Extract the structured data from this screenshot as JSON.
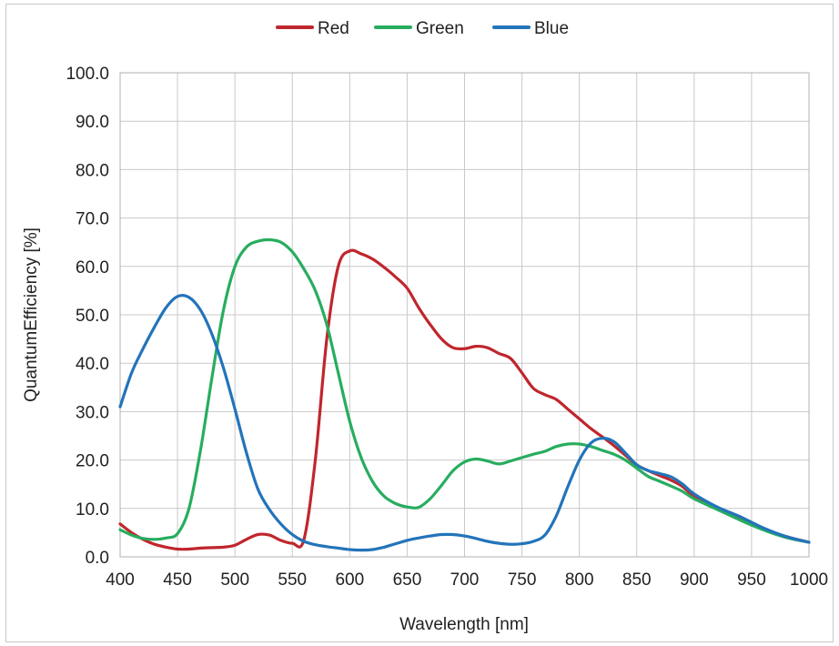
{
  "chart_data": {
    "type": "line",
    "xlabel": "Wavelength [nm]",
    "ylabel": "QuantumEfficiency [%]",
    "xlim": [
      400,
      1000
    ],
    "ylim": [
      0,
      100
    ],
    "x_ticks": [
      "400",
      "450",
      "500",
      "550",
      "600",
      "650",
      "700",
      "750",
      "800",
      "850",
      "900",
      "950",
      "1000"
    ],
    "y_ticks": [
      "0.0",
      "10.0",
      "20.0",
      "30.0",
      "40.0",
      "50.0",
      "60.0",
      "70.0",
      "80.0",
      "90.0",
      "100.0"
    ],
    "grid": true,
    "legend_position": "top",
    "series": [
      {
        "name": "Red",
        "color": "#c0262d",
        "points": [
          [
            400,
            6.8
          ],
          [
            410,
            5.0
          ],
          [
            420,
            3.6
          ],
          [
            430,
            2.6
          ],
          [
            440,
            2.0
          ],
          [
            450,
            1.6
          ],
          [
            460,
            1.6
          ],
          [
            470,
            1.8
          ],
          [
            480,
            1.9
          ],
          [
            490,
            2.0
          ],
          [
            500,
            2.4
          ],
          [
            510,
            3.6
          ],
          [
            520,
            4.6
          ],
          [
            530,
            4.5
          ],
          [
            540,
            3.4
          ],
          [
            550,
            2.8
          ],
          [
            560,
            3.5
          ],
          [
            570,
            20
          ],
          [
            580,
            45
          ],
          [
            590,
            60
          ],
          [
            600,
            63.2
          ],
          [
            610,
            62.6
          ],
          [
            620,
            61.5
          ],
          [
            630,
            59.8
          ],
          [
            640,
            57.8
          ],
          [
            650,
            55.5
          ],
          [
            660,
            51.5
          ],
          [
            670,
            48.0
          ],
          [
            680,
            45.0
          ],
          [
            690,
            43.2
          ],
          [
            700,
            43.0
          ],
          [
            710,
            43.5
          ],
          [
            720,
            43.2
          ],
          [
            730,
            42.0
          ],
          [
            740,
            41.0
          ],
          [
            750,
            38.0
          ],
          [
            760,
            34.8
          ],
          [
            770,
            33.5
          ],
          [
            780,
            32.5
          ],
          [
            790,
            30.5
          ],
          [
            800,
            28.5
          ],
          [
            810,
            26.5
          ],
          [
            820,
            24.8
          ],
          [
            830,
            23.0
          ],
          [
            840,
            21.0
          ],
          [
            850,
            19.0
          ],
          [
            860,
            17.8
          ],
          [
            870,
            16.8
          ],
          [
            880,
            15.8
          ],
          [
            890,
            14.5
          ],
          [
            900,
            12.5
          ],
          [
            920,
            10.0
          ],
          [
            940,
            8.0
          ],
          [
            960,
            5.8
          ],
          [
            980,
            4.2
          ],
          [
            1000,
            3.0
          ]
        ]
      },
      {
        "name": "Green",
        "color": "#27ad5f",
        "points": [
          [
            400,
            5.6
          ],
          [
            410,
            4.5
          ],
          [
            420,
            3.8
          ],
          [
            430,
            3.6
          ],
          [
            440,
            3.9
          ],
          [
            450,
            4.8
          ],
          [
            460,
            10.0
          ],
          [
            470,
            22.0
          ],
          [
            480,
            37.0
          ],
          [
            490,
            51.0
          ],
          [
            500,
            60.0
          ],
          [
            510,
            64.0
          ],
          [
            520,
            65.2
          ],
          [
            530,
            65.5
          ],
          [
            540,
            65.0
          ],
          [
            550,
            63.0
          ],
          [
            560,
            59.5
          ],
          [
            570,
            55.0
          ],
          [
            580,
            48.0
          ],
          [
            590,
            38.0
          ],
          [
            600,
            28.0
          ],
          [
            610,
            20.5
          ],
          [
            620,
            15.5
          ],
          [
            630,
            12.5
          ],
          [
            640,
            11.0
          ],
          [
            650,
            10.3
          ],
          [
            660,
            10.2
          ],
          [
            670,
            12.0
          ],
          [
            680,
            14.8
          ],
          [
            690,
            17.8
          ],
          [
            700,
            19.6
          ],
          [
            710,
            20.2
          ],
          [
            720,
            19.8
          ],
          [
            730,
            19.2
          ],
          [
            740,
            19.8
          ],
          [
            750,
            20.5
          ],
          [
            760,
            21.2
          ],
          [
            770,
            21.8
          ],
          [
            780,
            22.8
          ],
          [
            790,
            23.3
          ],
          [
            800,
            23.3
          ],
          [
            810,
            22.8
          ],
          [
            820,
            22.0
          ],
          [
            830,
            21.2
          ],
          [
            840,
            20.0
          ],
          [
            850,
            18.3
          ],
          [
            860,
            16.6
          ],
          [
            870,
            15.6
          ],
          [
            880,
            14.6
          ],
          [
            890,
            13.5
          ],
          [
            900,
            12.0
          ],
          [
            920,
            9.8
          ],
          [
            940,
            7.6
          ],
          [
            960,
            5.6
          ],
          [
            980,
            4.0
          ],
          [
            1000,
            3.0
          ]
        ]
      },
      {
        "name": "Blue",
        "color": "#2374ba",
        "points": [
          [
            400,
            31.0
          ],
          [
            410,
            38.0
          ],
          [
            420,
            43.0
          ],
          [
            430,
            47.5
          ],
          [
            440,
            51.5
          ],
          [
            450,
            53.8
          ],
          [
            460,
            53.6
          ],
          [
            470,
            51.0
          ],
          [
            480,
            46.0
          ],
          [
            490,
            39.0
          ],
          [
            500,
            30.5
          ],
          [
            510,
            21.5
          ],
          [
            520,
            14.0
          ],
          [
            530,
            9.8
          ],
          [
            540,
            6.8
          ],
          [
            550,
            4.6
          ],
          [
            560,
            3.2
          ],
          [
            570,
            2.5
          ],
          [
            580,
            2.1
          ],
          [
            590,
            1.8
          ],
          [
            600,
            1.5
          ],
          [
            610,
            1.4
          ],
          [
            620,
            1.5
          ],
          [
            630,
            2.0
          ],
          [
            640,
            2.7
          ],
          [
            650,
            3.4
          ],
          [
            660,
            3.9
          ],
          [
            670,
            4.3
          ],
          [
            680,
            4.6
          ],
          [
            690,
            4.6
          ],
          [
            700,
            4.3
          ],
          [
            710,
            3.8
          ],
          [
            720,
            3.2
          ],
          [
            730,
            2.8
          ],
          [
            740,
            2.6
          ],
          [
            750,
            2.7
          ],
          [
            760,
            3.2
          ],
          [
            770,
            4.5
          ],
          [
            780,
            8.5
          ],
          [
            790,
            14.5
          ],
          [
            800,
            20.0
          ],
          [
            810,
            23.5
          ],
          [
            820,
            24.5
          ],
          [
            830,
            23.8
          ],
          [
            840,
            21.5
          ],
          [
            850,
            19.0
          ],
          [
            860,
            17.8
          ],
          [
            870,
            17.2
          ],
          [
            880,
            16.5
          ],
          [
            890,
            15.0
          ],
          [
            900,
            13.0
          ],
          [
            920,
            10.3
          ],
          [
            940,
            8.3
          ],
          [
            960,
            6.0
          ],
          [
            980,
            4.2
          ],
          [
            1000,
            3.0
          ]
        ]
      }
    ]
  }
}
